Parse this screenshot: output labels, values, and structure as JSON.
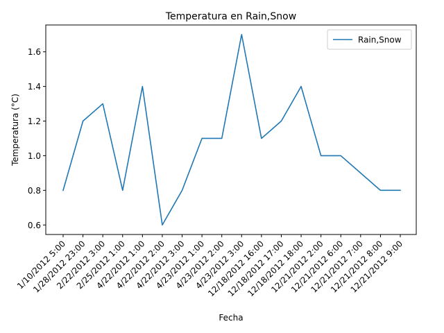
{
  "chart_data": {
    "type": "line",
    "title": "Temperatura en Rain,Snow",
    "xlabel": "Fecha",
    "ylabel": "Temperatura (°C)",
    "categories": [
      "1/10/2012 5:00",
      "1/28/2012 23:00",
      "2/22/2012 3:00",
      "2/25/2012 1:00",
      "4/22/2012 1:00",
      "4/22/2012 2:00",
      "4/22/2012 3:00",
      "4/23/2012 1:00",
      "4/23/2012 2:00",
      "4/23/2012 3:00",
      "12/18/2012 16:00",
      "12/18/2012 17:00",
      "12/18/2012 18:00",
      "12/21/2012 2:00",
      "12/21/2012 6:00",
      "12/21/2012 7:00",
      "12/21/2012 8:00",
      "12/21/2012 9:00"
    ],
    "series": [
      {
        "name": "Rain,Snow",
        "values": [
          0.8,
          1.2,
          1.3,
          0.8,
          1.4,
          0.6,
          0.8,
          1.1,
          1.1,
          1.7,
          1.1,
          1.2,
          1.4,
          1.0,
          1.0,
          0.9,
          0.8,
          0.8
        ],
        "color": "#1f77b4"
      }
    ],
    "ylim": [
      0.545,
      1.755
    ],
    "yticks": [
      0.6,
      0.8,
      1.0,
      1.2,
      1.4,
      1.6
    ],
    "grid": false,
    "legend_position": "top-right"
  }
}
